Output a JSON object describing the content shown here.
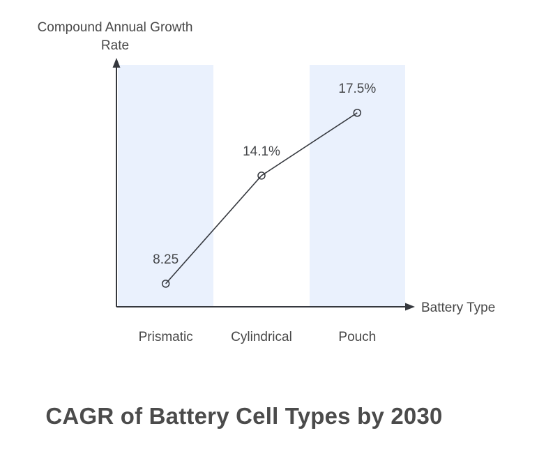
{
  "colors": {
    "band": "#EAF1FD",
    "line": "#35383E",
    "text": "#474747",
    "title_text": "#4B4B4B",
    "background": "#FFFFFF"
  },
  "chart_data": {
    "type": "line",
    "title": "CAGR of Battery Cell Types by 2030",
    "xlabel": "Battery Type",
    "ylabel": "Compound Annual Growth Rate",
    "ylabel_lines": [
      "Compound Annual Growth",
      "Rate"
    ],
    "categories": [
      "Prismatic",
      "Cylindrical",
      "Pouch"
    ],
    "values": [
      8.25,
      14.1,
      17.5
    ],
    "point_labels": [
      "8.25",
      "14.1%",
      "17.5%"
    ],
    "highlighted_band_categories": [
      "Prismatic",
      "Pouch"
    ],
    "band_indices": [
      0,
      2
    ],
    "marker": "open-circle",
    "grid": false,
    "legend": false,
    "axis_arrows": true
  }
}
